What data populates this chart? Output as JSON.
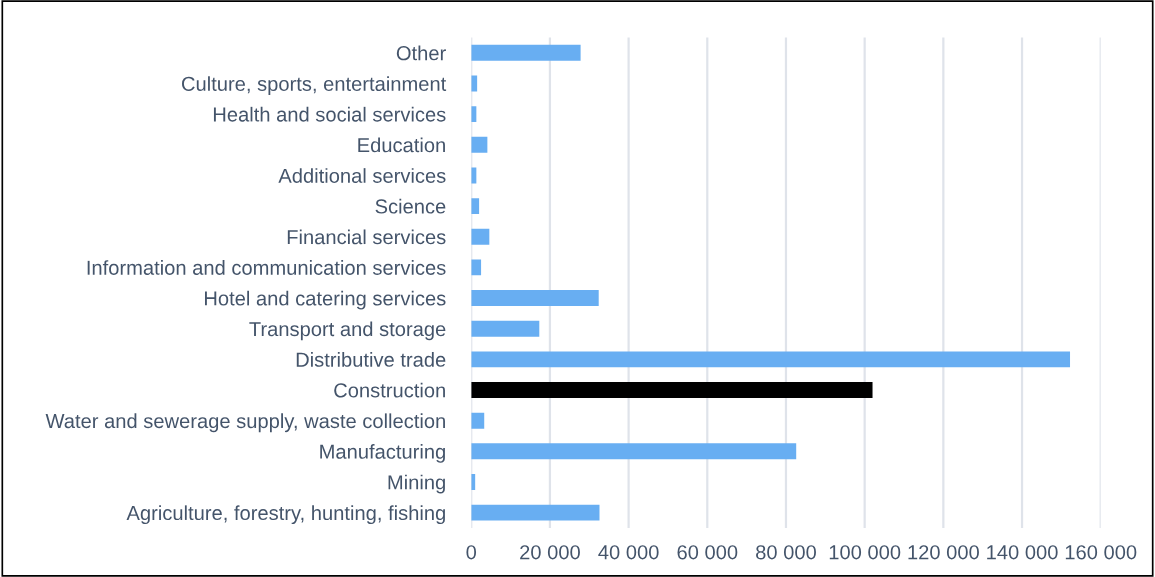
{
  "chart_data": {
    "type": "bar",
    "orientation": "horizontal",
    "categories": [
      "Other",
      "Culture, sports, entertainment",
      "Health and social services",
      "Education",
      "Additional services",
      "Science",
      "Financial services",
      "Information and communication services",
      "Hotel and catering services",
      "Transport and storage",
      "Distributive trade",
      "Construction",
      "Water and sewerage supply, waste collection",
      "Manufacturing",
      "Mining",
      "Agriculture, forestry, hunting, fishing"
    ],
    "values": [
      27800,
      1500,
      1300,
      4100,
      1300,
      2000,
      4600,
      2500,
      32400,
      17300,
      152200,
      102000,
      3300,
      82600,
      1000,
      32600
    ],
    "colors": [
      "#68aef2",
      "#68aef2",
      "#68aef2",
      "#68aef2",
      "#68aef2",
      "#68aef2",
      "#68aef2",
      "#68aef2",
      "#68aef2",
      "#68aef2",
      "#68aef2",
      "#000000",
      "#68aef2",
      "#68aef2",
      "#68aef2",
      "#68aef2"
    ],
    "xlim": [
      0,
      160000
    ],
    "xticks": [
      0,
      {
        "value": 20000,
        "label": "20 000"
      },
      {
        "value": 40000,
        "label": "40 000"
      },
      {
        "value": 60000,
        "label": "60 000"
      },
      {
        "value": 80000,
        "label": "80 000"
      },
      {
        "value": 100000,
        "label": "100 000"
      },
      {
        "value": 120000,
        "label": "120 000"
      },
      {
        "value": 140000,
        "label": "140 000"
      },
      {
        "value": 160000,
        "label": "160 000"
      }
    ],
    "grid": "x",
    "legend": false
  }
}
